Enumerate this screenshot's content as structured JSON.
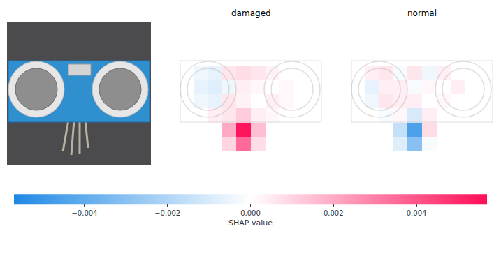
{
  "chart_data": {
    "type": "heatmap",
    "tick_labels": false,
    "colors": [
      "#1e88e5",
      "#ffffff",
      "#ff0d57"
    ],
    "panels": [
      {
        "title": "damaged",
        "cells": [
          [
            0,
            0,
            0,
            0,
            0,
            0,
            0,
            0,
            0,
            0
          ],
          [
            0,
            0,
            0,
            0,
            0,
            0,
            0,
            0,
            0,
            0
          ],
          [
            0,
            0,
            0,
            0,
            0,
            0,
            0,
            0,
            0,
            0
          ],
          [
            0,
            -0.0004,
            -0.0006,
            0.0006,
            0.0008,
            0.0006,
            0.0003,
            0,
            0,
            0
          ],
          [
            0,
            -0.0006,
            -0.0008,
            -0.0004,
            0.0004,
            0.0002,
            0,
            0.0002,
            0,
            0
          ],
          [
            0,
            -0.0004,
            -0.0006,
            0.0006,
            0.0003,
            0,
            0.0004,
            0.0002,
            0,
            0
          ],
          [
            0,
            0,
            0.0004,
            0.0006,
            0.0012,
            0.0004,
            0.0002,
            0,
            0,
            0
          ],
          [
            0,
            0,
            0,
            0.002,
            0.0055,
            0.0015,
            0,
            0,
            0,
            0
          ],
          [
            0,
            0,
            0,
            0.001,
            0.0035,
            0.0008,
            0,
            0,
            0,
            0
          ],
          [
            0,
            0,
            0,
            0,
            0,
            0,
            0,
            0,
            0,
            0
          ]
        ]
      },
      {
        "title": "normal",
        "cells": [
          [
            0,
            0,
            0,
            0,
            0,
            0,
            0,
            0,
            0,
            0
          ],
          [
            0,
            0,
            0,
            0,
            0,
            0,
            0,
            0,
            0,
            0
          ],
          [
            0,
            0,
            0,
            0,
            0,
            0,
            0,
            0,
            0,
            0
          ],
          [
            0,
            0.0004,
            0.0006,
            -0.0002,
            0.0006,
            -0.0004,
            0.0004,
            0,
            0,
            0
          ],
          [
            0,
            -0.0006,
            0.0004,
            0.0004,
            -0.0002,
            0.0002,
            0,
            0.0004,
            0,
            0
          ],
          [
            0,
            -0.0004,
            0.0006,
            0.0004,
            0.0004,
            0,
            0.0002,
            0,
            0,
            0
          ],
          [
            0,
            0,
            -0.0002,
            0.0002,
            -0.001,
            0.0004,
            0,
            0,
            0,
            0
          ],
          [
            0,
            0,
            0,
            -0.0015,
            -0.0045,
            0.0008,
            0,
            0,
            0,
            0
          ],
          [
            0,
            0,
            0,
            -0.0008,
            -0.003,
            -0.0002,
            0,
            0,
            0,
            0
          ],
          [
            0,
            0,
            0,
            0,
            0,
            0,
            0,
            0,
            0,
            0
          ]
        ]
      }
    ],
    "colorbar": {
      "title": "SHAP value",
      "range": [
        -0.0057,
        0.0057
      ],
      "ticks": [
        {
          "value": -0.004,
          "label": "−0.004"
        },
        {
          "value": -0.002,
          "label": "−0.002"
        },
        {
          "value": 0,
          "label": "0.000"
        },
        {
          "value": 0.002,
          "label": "0.002"
        },
        {
          "value": 0.004,
          "label": "0.004"
        }
      ]
    }
  }
}
